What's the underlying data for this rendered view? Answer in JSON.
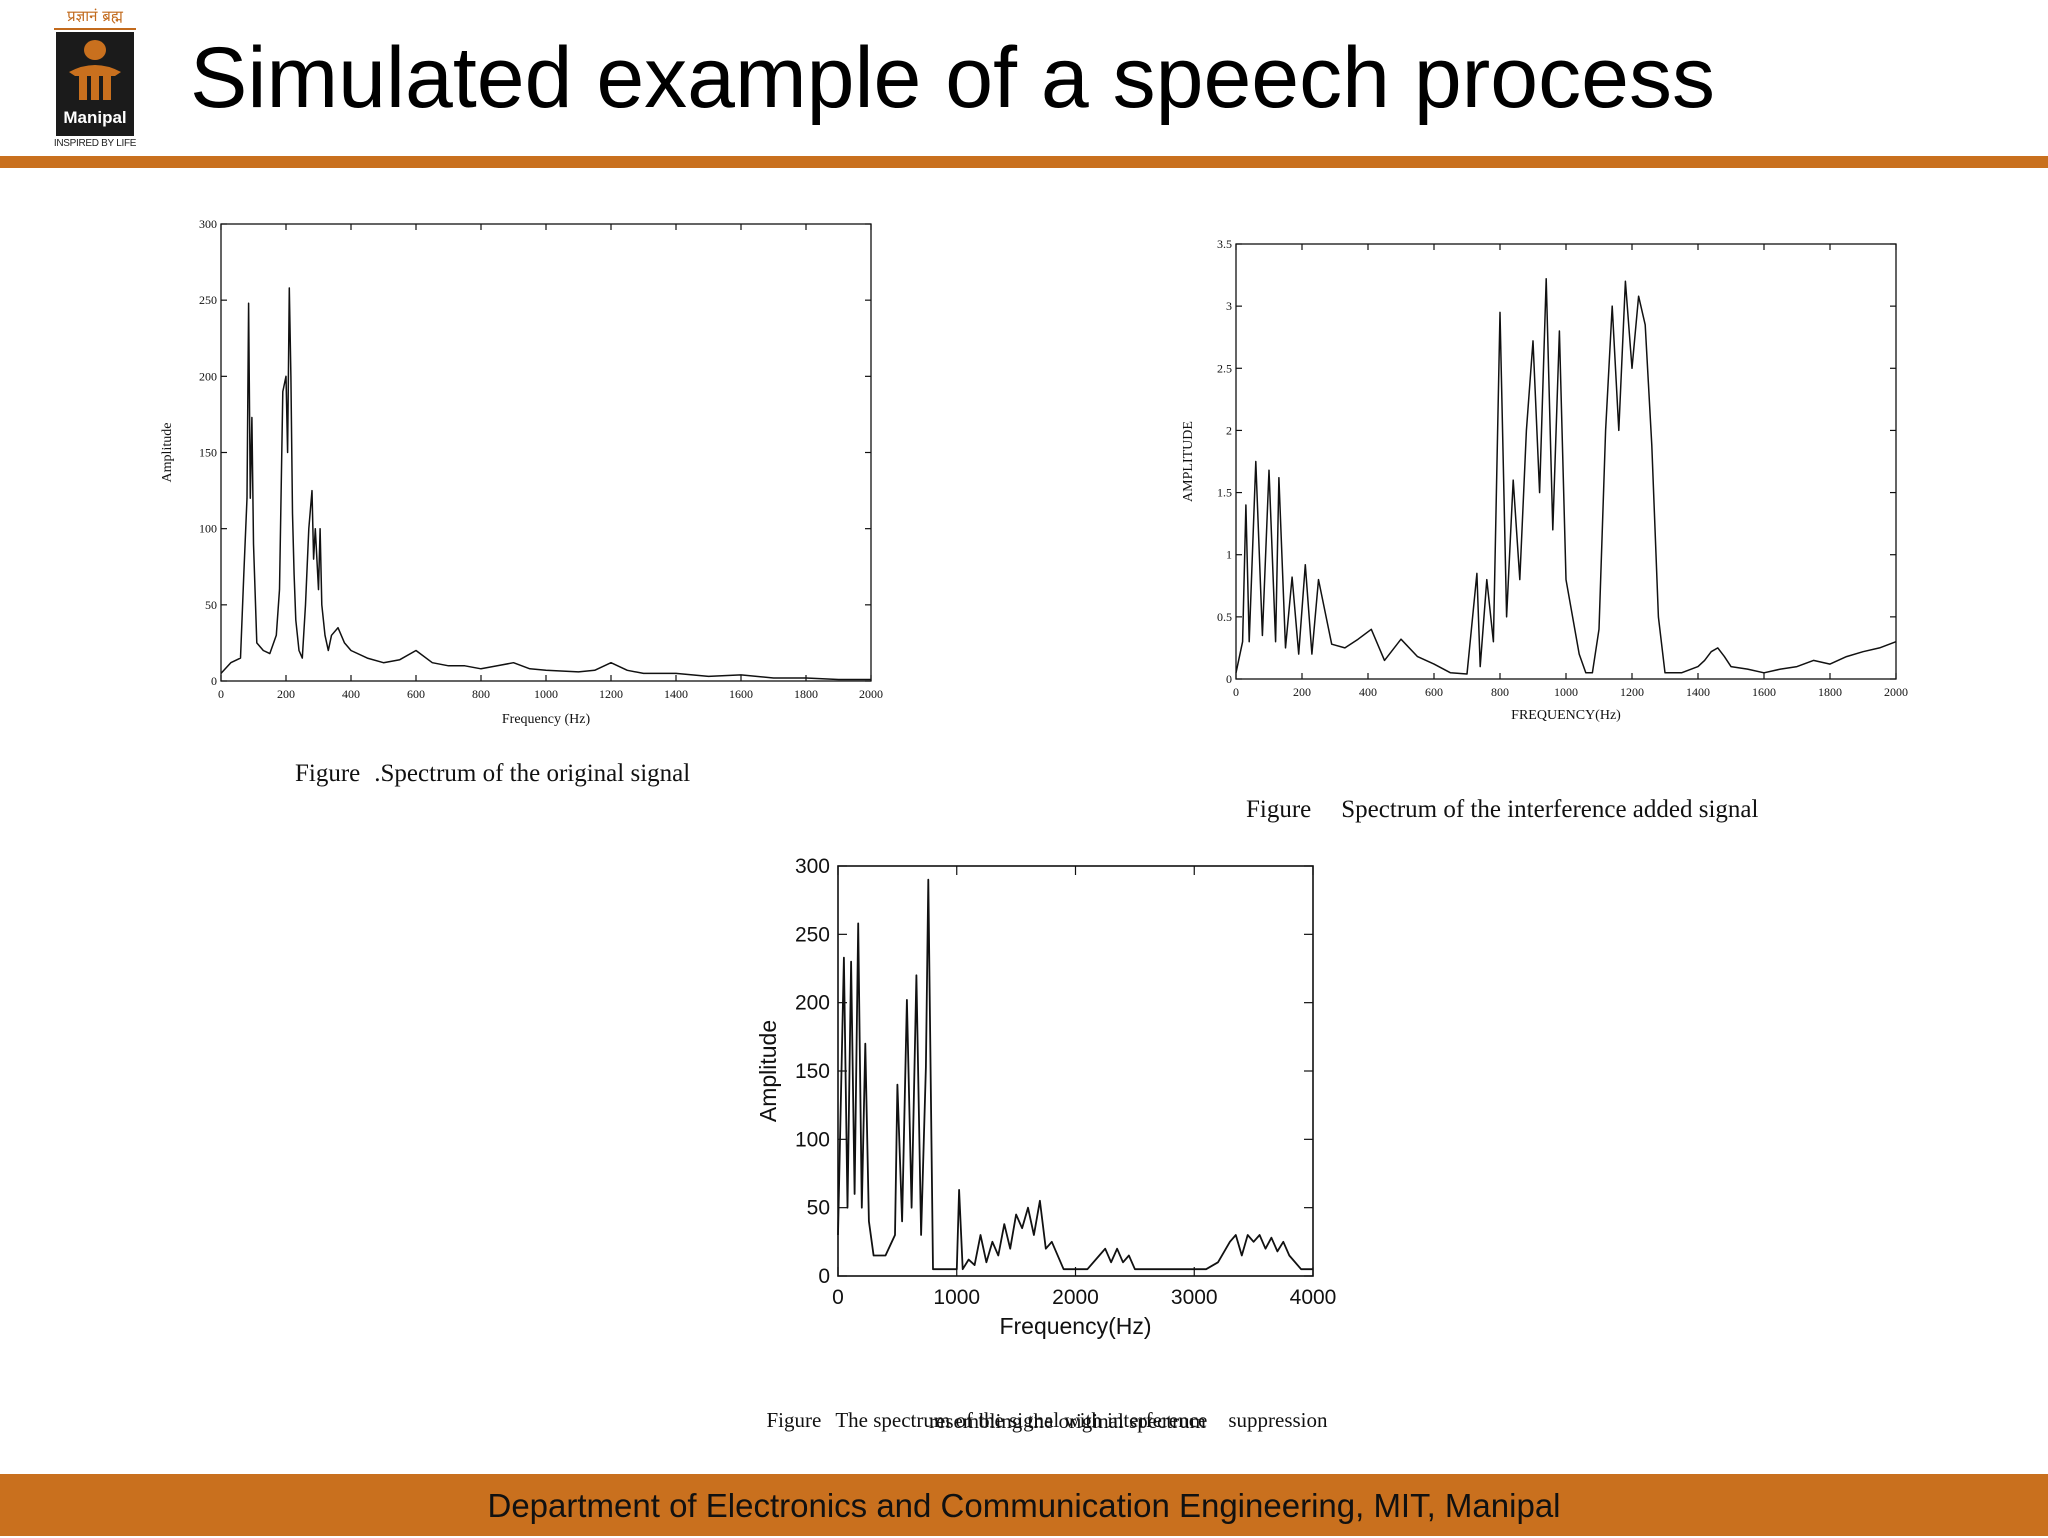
{
  "header": {
    "logo_script": "प्रज्ञानं ब्रह्म",
    "logo_name": "Manipal",
    "logo_tagline": "INSPIRED BY LIFE",
    "title": "Simulated example of a speech process"
  },
  "footer": {
    "text": "Department of Electronics and Communication Engineering, MIT, Manipal"
  },
  "captions": [
    {
      "prefix": "Figure",
      "text": ".Spectrum of the original signal"
    },
    {
      "prefix": "Figure",
      "text": "Spectrum of the interference added signal"
    },
    {
      "prefix": "Figure",
      "text": "The spectrum of the signal with interference    suppression",
      "line2": "resembling the original spectrum"
    }
  ],
  "colors": {
    "accent": "#c9701e",
    "trace": "#111111"
  },
  "chart_data": [
    {
      "type": "line",
      "xlabel": "Frequency (Hz)",
      "ylabel": "Amplitude",
      "xlim": [
        0,
        2000
      ],
      "ylim": [
        0,
        300
      ],
      "xticks": [
        0,
        200,
        400,
        600,
        800,
        1000,
        1200,
        1400,
        1600,
        1800,
        2000
      ],
      "yticks": [
        0,
        50,
        100,
        150,
        200,
        250,
        300
      ],
      "series": [
        {
          "x": [
            0,
            30,
            60,
            70,
            80,
            85,
            90,
            95,
            100,
            110,
            130,
            150,
            170,
            180,
            190,
            200,
            205,
            210,
            215,
            220,
            225,
            230,
            240,
            250,
            260,
            270,
            280,
            285,
            290,
            300,
            305,
            310,
            320,
            330,
            340,
            360,
            380,
            400,
            450,
            500,
            550,
            600,
            650,
            700,
            750,
            800,
            850,
            900,
            950,
            1000,
            1100,
            1150,
            1200,
            1250,
            1300,
            1400,
            1500,
            1600,
            1700,
            1800,
            1900,
            2000
          ],
          "y": [
            5,
            12,
            15,
            70,
            120,
            248,
            120,
            173,
            90,
            25,
            20,
            18,
            30,
            60,
            190,
            200,
            150,
            258,
            200,
            110,
            70,
            40,
            20,
            15,
            50,
            100,
            125,
            80,
            100,
            60,
            100,
            50,
            30,
            20,
            30,
            35,
            25,
            20,
            15,
            12,
            14,
            20,
            12,
            10,
            10,
            8,
            10,
            12,
            8,
            7,
            6,
            7,
            12,
            7,
            5,
            5,
            3,
            4,
            2,
            2,
            1,
            1
          ]
        }
      ]
    },
    {
      "type": "line",
      "xlabel": "FREQUENCY(Hz)",
      "ylabel": "AMPLITUDE",
      "xlim": [
        0,
        2000
      ],
      "ylim": [
        0,
        3.5
      ],
      "xticks": [
        0,
        200,
        400,
        600,
        800,
        1000,
        1200,
        1400,
        1600,
        1800,
        2000
      ],
      "yticks": [
        0,
        0.5,
        1,
        1.5,
        2,
        2.5,
        3,
        3.5
      ],
      "series": [
        {
          "x": [
            0,
            20,
            30,
            40,
            60,
            80,
            100,
            120,
            130,
            150,
            170,
            190,
            210,
            230,
            250,
            290,
            330,
            370,
            410,
            450,
            500,
            550,
            600,
            650,
            700,
            730,
            740,
            760,
            780,
            800,
            820,
            840,
            860,
            880,
            900,
            920,
            940,
            960,
            980,
            1000,
            1020,
            1040,
            1060,
            1080,
            1100,
            1120,
            1140,
            1160,
            1180,
            1200,
            1220,
            1240,
            1260,
            1280,
            1300,
            1350,
            1400,
            1420,
            1440,
            1460,
            1480,
            1500,
            1550,
            1600,
            1650,
            1700,
            1750,
            1800,
            1850,
            1900,
            1950,
            2000
          ],
          "y": [
            0.05,
            0.3,
            1.4,
            0.3,
            1.75,
            0.35,
            1.68,
            0.3,
            1.62,
            0.25,
            0.82,
            0.2,
            0.92,
            0.2,
            0.8,
            0.28,
            0.25,
            0.32,
            0.4,
            0.15,
            0.32,
            0.18,
            0.12,
            0.05,
            0.04,
            0.85,
            0.1,
            0.8,
            0.3,
            2.95,
            0.5,
            1.6,
            0.8,
            2.0,
            2.72,
            1.5,
            3.22,
            1.2,
            2.8,
            0.8,
            0.5,
            0.2,
            0.05,
            0.05,
            0.4,
            2.0,
            3.0,
            2.0,
            3.2,
            2.5,
            3.08,
            2.85,
            1.88,
            0.5,
            0.05,
            0.05,
            0.1,
            0.15,
            0.22,
            0.25,
            0.18,
            0.1,
            0.08,
            0.05,
            0.08,
            0.1,
            0.15,
            0.12,
            0.18,
            0.22,
            0.25,
            0.3
          ]
        }
      ]
    },
    {
      "type": "line",
      "xlabel": "Frequency(Hz)",
      "ylabel": "Amplitude",
      "xlim": [
        0,
        4000
      ],
      "ylim": [
        0,
        300
      ],
      "xticks": [
        0,
        1000,
        2000,
        3000,
        4000
      ],
      "yticks": [
        0,
        50,
        100,
        150,
        200,
        250,
        300
      ],
      "series": [
        {
          "x": [
            0,
            50,
            80,
            110,
            140,
            170,
            200,
            230,
            260,
            300,
            400,
            480,
            500,
            540,
            580,
            620,
            660,
            700,
            740,
            760,
            800,
            900,
            1000,
            1020,
            1050,
            1100,
            1150,
            1200,
            1250,
            1300,
            1350,
            1400,
            1450,
            1500,
            1550,
            1600,
            1650,
            1700,
            1750,
            1800,
            1900,
            2000,
            2100,
            2200,
            2250,
            2300,
            2350,
            2400,
            2450,
            2500,
            2600,
            2700,
            2800,
            2900,
            3000,
            3100,
            3200,
            3300,
            3350,
            3400,
            3450,
            3500,
            3550,
            3600,
            3650,
            3700,
            3750,
            3800,
            3900,
            4000
          ],
          "y": [
            30,
            233,
            50,
            230,
            60,
            258,
            50,
            170,
            40,
            15,
            15,
            30,
            140,
            40,
            202,
            50,
            220,
            30,
            153,
            290,
            5,
            5,
            5,
            63,
            5,
            12,
            8,
            30,
            10,
            25,
            15,
            38,
            20,
            45,
            35,
            50,
            30,
            55,
            20,
            25,
            5,
            5,
            5,
            15,
            20,
            10,
            20,
            10,
            15,
            5,
            5,
            5,
            5,
            5,
            5,
            5,
            10,
            25,
            30,
            15,
            30,
            25,
            30,
            20,
            28,
            18,
            25,
            15,
            5,
            5
          ]
        }
      ]
    }
  ]
}
